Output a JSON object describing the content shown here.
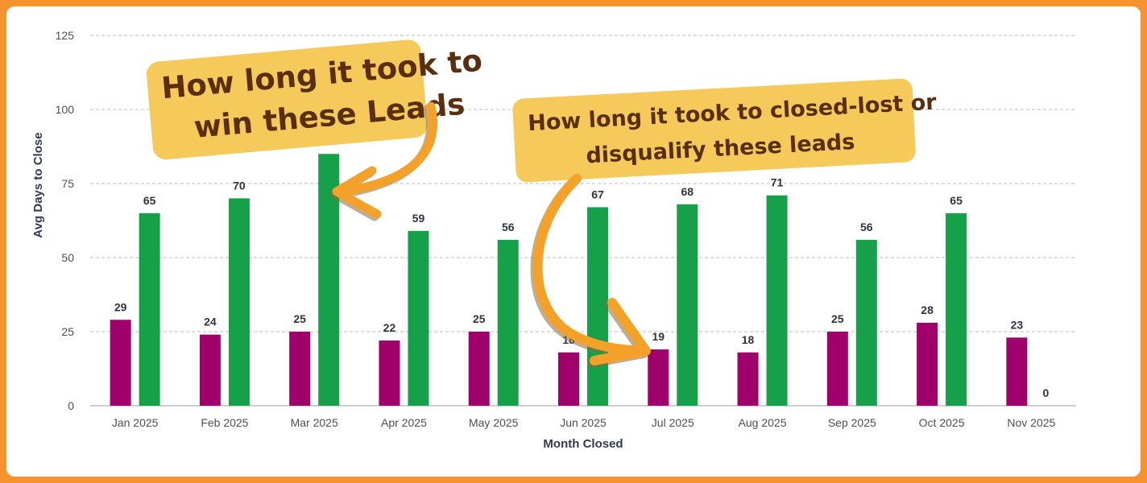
{
  "chart_data": {
    "type": "bar",
    "title": "",
    "xlabel": "Month Closed",
    "ylabel": "Avg Days to Close",
    "ylim": [
      0,
      125
    ],
    "yticks": [
      0,
      25,
      50,
      75,
      100,
      125
    ],
    "grid": true,
    "categories": [
      "Jan 2025",
      "Feb 2025",
      "Mar 2025",
      "Apr 2025",
      "May 2025",
      "Jun 2025",
      "Jul 2025",
      "Aug 2025",
      "Sep 2025",
      "Oct 2025",
      "Nov 2025"
    ],
    "series": [
      {
        "color": "#a0006a",
        "values": [
          29,
          24,
          25,
          22,
          25,
          18,
          19,
          18,
          25,
          28,
          23
        ]
      },
      {
        "color": "#16a04a",
        "values": [
          65,
          70,
          85,
          59,
          56,
          67,
          68,
          71,
          56,
          65,
          0
        ]
      }
    ],
    "annotations": [
      {
        "lines": [
          "How long it took to",
          "win these Leads"
        ]
      },
      {
        "lines": [
          "How long it took to closed-lost or",
          "disqualify these leads"
        ]
      }
    ]
  },
  "colors": {
    "background": "#f7932f",
    "callout_fill": "#f5c95a",
    "arrow": "#f4a12a"
  }
}
